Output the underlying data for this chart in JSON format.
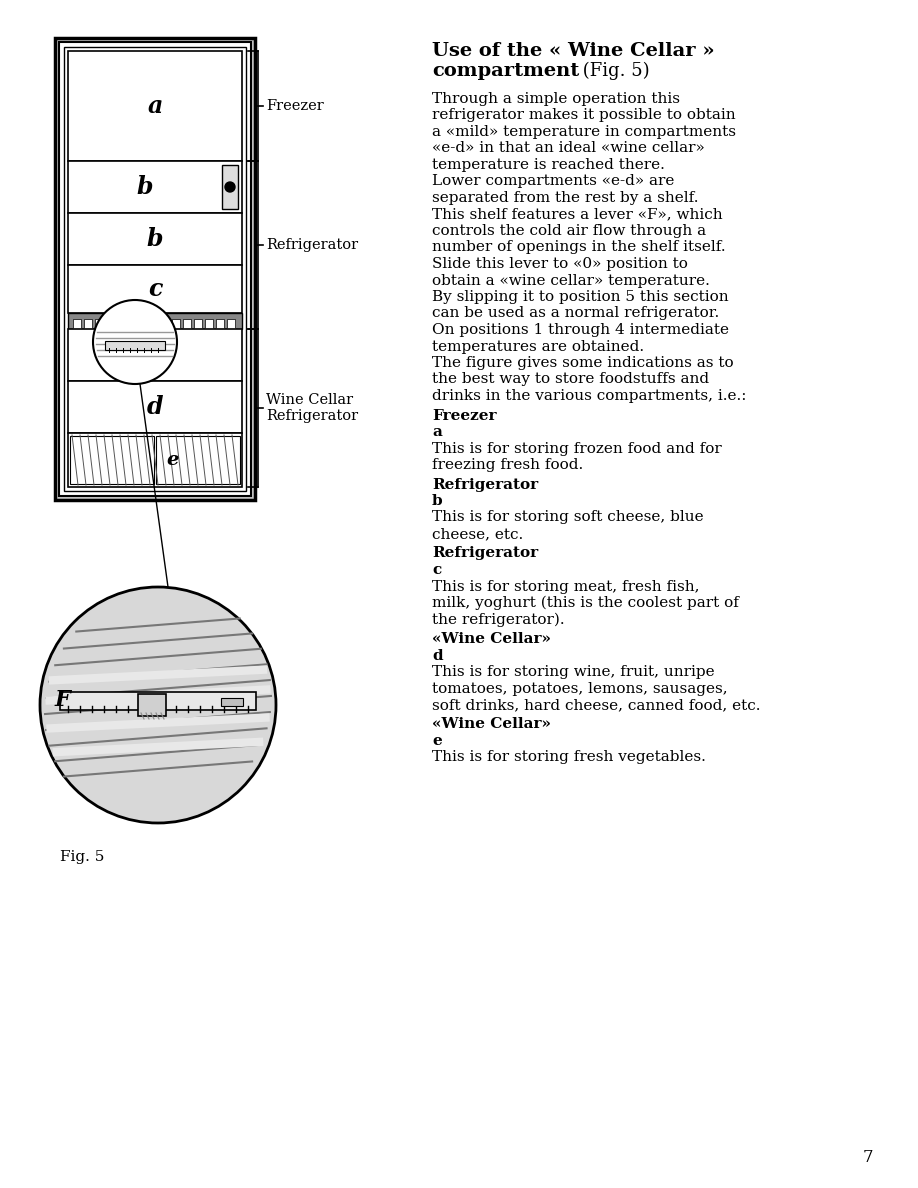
{
  "bg_color": "#ffffff",
  "page_number": "7",
  "body_lines": [
    "Through a simple operation this",
    "refrigerator makes it possible to obtain",
    "a «mild» temperature in compartments",
    "«e-d» in that an ideal «wine cellar»",
    "temperature is reached there.",
    "Lower compartments «e-d» are",
    "separated from the rest by a shelf.",
    "This shelf features a lever «F», which",
    "controls the cold air flow through a",
    "number of openings in the shelf itself.",
    "Slide this lever to «0» position to",
    "obtain a «wine cellar» temperature.",
    "By slipping it to position 5 this section",
    "can be used as a normal refrigerator.",
    "On positions 1 through 4 intermediate",
    "temperatures are obtained.",
    "The figure gives some indications as to",
    "the best way to store foodstuffs and",
    "drinks in the various compartments, i.e.:"
  ],
  "sections": [
    {
      "heading": "Freezer",
      "subheading": "a",
      "text_lines": [
        "This is for storing frozen food and for",
        "freezing fresh food."
      ]
    },
    {
      "heading": "Refrigerator",
      "subheading": "b",
      "text_lines": [
        "This is for storing soft cheese, blue",
        "cheese, etc."
      ]
    },
    {
      "heading": "Refrigerator",
      "subheading": "c",
      "text_lines": [
        "This is for storing meat, fresh fish,",
        "milk, yoghurt (this is the coolest part of",
        "the refrigerator)."
      ]
    },
    {
      "heading": "«Wine Cellar»",
      "subheading": "d",
      "text_lines": [
        "This is for storing wine, fruit, unripe",
        "tomatoes, potatoes, lemons, sausages,",
        "soft drinks, hard cheese, canned food, etc."
      ]
    },
    {
      "heading": "«Wine Cellar»",
      "subheading": "e",
      "text_lines": [
        "This is for storing fresh vegetables."
      ]
    }
  ],
  "fig_label": "Fig. 5",
  "freezer_label": "Freezer",
  "refrigerator_label": "Refrigerator",
  "wine_cellar_label": "Wine Cellar\nRefrigerator"
}
